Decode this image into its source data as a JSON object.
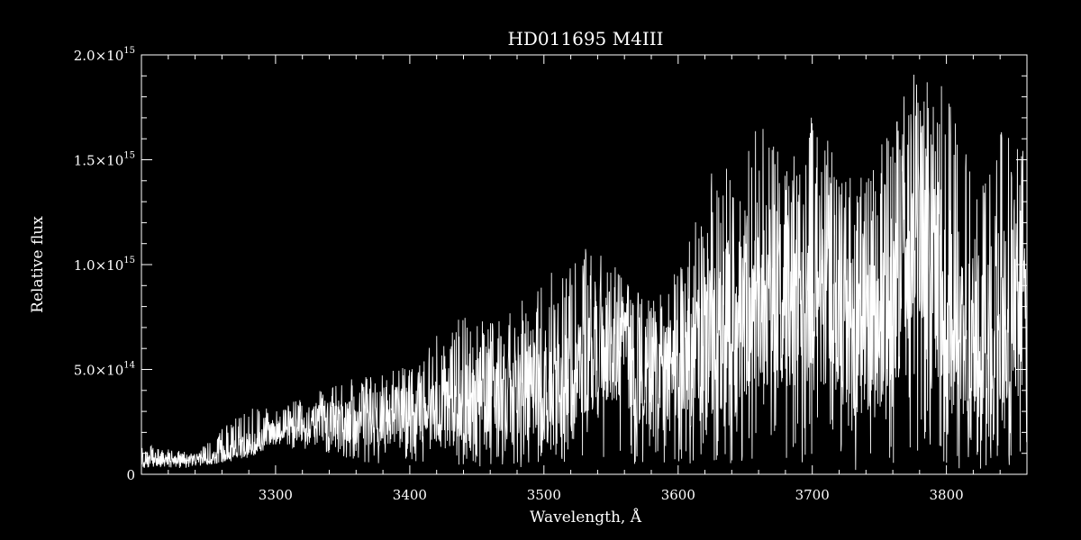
{
  "chart_data": {
    "type": "line",
    "title": "HD011695   M4III",
    "xlabel": "Wavelength, Å",
    "ylabel": "Relative flux",
    "xlim": [
      3200,
      3860
    ],
    "ylim": [
      0,
      2000000000000000.0
    ],
    "x_ticks": [
      3300,
      3400,
      3500,
      3600,
      3700,
      3800
    ],
    "x_tick_labels": [
      "3300",
      "3400",
      "3500",
      "3600",
      "3700",
      "3800"
    ],
    "y_ticks": [
      0,
      500000000000000.0,
      1000000000000000.0,
      1500000000000000.0,
      2000000000000000.0
    ],
    "y_tick_labels": [
      {
        "mantissa": "0",
        "exponent": ""
      },
      {
        "mantissa": "5.0×10",
        "exponent": "14"
      },
      {
        "mantissa": "1.0×10",
        "exponent": "15"
      },
      {
        "mantissa": "1.5×10",
        "exponent": "15"
      },
      {
        "mantissa": "2.0×10",
        "exponent": "15"
      }
    ],
    "grid": false,
    "colors": {
      "background": "#000000",
      "foreground": "#ffffff"
    },
    "series": [
      {
        "x": [
          3200,
          3220,
          3240,
          3260,
          3280,
          3300,
          3320,
          3340,
          3360,
          3380,
          3400,
          3420,
          3440,
          3460,
          3480,
          3500,
          3520,
          3540,
          3560,
          3580,
          3600,
          3620,
          3640,
          3660,
          3680,
          3700,
          3720,
          3740,
          3760,
          3780,
          3800,
          3820,
          3840,
          3860
        ],
        "y": [
          80000000000000.0,
          70000000000000.0,
          70000000000000.0,
          90000000000000.0,
          140000000000000.0,
          220000000000000.0,
          240000000000000.0,
          260000000000000.0,
          250000000000000.0,
          260000000000000.0,
          300000000000000.0,
          320000000000000.0,
          350000000000000.0,
          370000000000000.0,
          390000000000000.0,
          440000000000000.0,
          460000000000000.0,
          620000000000000.0,
          600000000000000.0,
          460000000000000.0,
          500000000000000.0,
          640000000000000.0,
          740000000000000.0,
          860000000000000.0,
          820000000000000.0,
          940000000000000.0,
          760000000000000.0,
          620000000000000.0,
          800000000000000.0,
          1280000000000000.0,
          820000000000000.0,
          660000000000000.0,
          740000000000000.0,
          860000000000000.0
        ],
        "upper": [
          160000000000000.0,
          120000000000000.0,
          100000000000000.0,
          220000000000000.0,
          320000000000000.0,
          320000000000000.0,
          360000000000000.0,
          420000000000000.0,
          460000000000000.0,
          480000000000000.0,
          520000000000000.0,
          660000000000000.0,
          760000000000000.0,
          720000000000000.0,
          820000000000000.0,
          920000000000000.0,
          1080000000000000.0,
          1080000000000000.0,
          940000000000000.0,
          820000000000000.0,
          980000000000000.0,
          1420000000000000.0,
          1520000000000000.0,
          1700000000000000.0,
          1540000000000000.0,
          1720000000000000.0,
          1500000000000000.0,
          1420000000000000.0,
          1720000000000000.0,
          1960000000000000.0,
          1860000000000000.0,
          1460000000000000.0,
          1660000000000000.0,
          1560000000000000.0
        ],
        "lower": [
          30000000000000.0,
          30000000000000.0,
          30000000000000.0,
          50000000000000.0,
          80000000000000.0,
          130000000000000.0,
          120000000000000.0,
          100000000000000.0,
          60000000000000.0,
          30000000000000.0,
          60000000000000.0,
          40000000000000.0,
          40000000000000.0,
          30000000000000.0,
          30000000000000.0,
          30000000000000.0,
          60000000000000.0,
          80000000000000.0,
          60000000000000.0,
          20000000000000.0,
          30000000000000.0,
          60000000000000.0,
          30000000000000.0,
          50000000000000.0,
          30000000000000.0,
          30000000000000.0,
          20000000000000.0,
          20000000000000.0,
          30000000000000.0,
          60000000000000.0,
          30000000000000.0,
          20000000000000.0,
          20000000000000.0,
          30000000000000.0
        ]
      }
    ]
  }
}
